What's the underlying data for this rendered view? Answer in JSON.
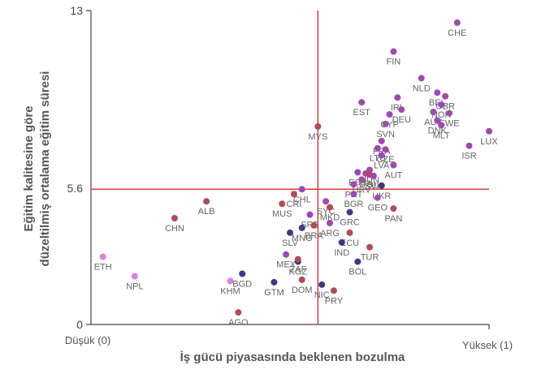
{
  "chart_data": {
    "type": "scatter",
    "xlabel": "İş gücü piyasasında beklenen bozulma",
    "ylabel": "Eğitim kalitesine göre düzeltilmiş ortalama eğitim süresi",
    "x_min_label": "Düşük (0)",
    "x_max_label": "Yüksek (1)",
    "xlim": [
      0,
      1
    ],
    "ylim": [
      0,
      13
    ],
    "yticks": [
      "0",
      "5.6",
      "13"
    ],
    "reference_lines": {
      "x": 0.57,
      "y": 5.6
    },
    "colors": {
      "axes": "#444444",
      "reference": "#dd3b3b",
      "text": "#666666"
    },
    "points": [
      {
        "label": "CHE",
        "x": 0.92,
        "y": 12.5,
        "color": "#a24aa8"
      },
      {
        "label": "FIN",
        "x": 0.76,
        "y": 11.3,
        "color": "#9c48b8"
      },
      {
        "label": "NLD",
        "x": 0.83,
        "y": 10.2,
        "color": "#a24aa8"
      },
      {
        "label": "BEL",
        "x": 0.87,
        "y": 9.6,
        "color": "#9c48b8"
      },
      {
        "label": "GBR",
        "x": 0.89,
        "y": 9.45,
        "color": "#a24aa8"
      },
      {
        "label": "NOR",
        "x": 0.88,
        "y": 9.1,
        "color": "#9c48b8"
      },
      {
        "label": "IRL",
        "x": 0.77,
        "y": 9.4,
        "color": "#9c48b8"
      },
      {
        "label": "DEU",
        "x": 0.78,
        "y": 8.9,
        "color": "#a24aa8"
      },
      {
        "label": "AUS",
        "x": 0.86,
        "y": 8.8,
        "color": "#9c48b8"
      },
      {
        "label": "SWE",
        "x": 0.9,
        "y": 8.75,
        "color": "#a24aa8"
      },
      {
        "label": "DNK",
        "x": 0.87,
        "y": 8.45,
        "color": "#9c48b8"
      },
      {
        "label": "MLT",
        "x": 0.88,
        "y": 8.25,
        "color": "#a24aa8"
      },
      {
        "label": "EST",
        "x": 0.68,
        "y": 9.2,
        "color": "#a24aa8"
      },
      {
        "label": "CYP",
        "x": 0.75,
        "y": 8.7,
        "color": "#9c48b8"
      },
      {
        "label": "SVN",
        "x": 0.74,
        "y": 8.3,
        "color": "#a24aa8"
      },
      {
        "label": "MYS",
        "x": 0.57,
        "y": 8.2,
        "color": "#b34a56"
      },
      {
        "label": "LUX",
        "x": 1.0,
        "y": 8.0,
        "color": "#a24aa8"
      },
      {
        "label": "ISR",
        "x": 0.95,
        "y": 7.4,
        "color": "#9c48b8"
      },
      {
        "label": "FRA",
        "x": 0.73,
        "y": 7.6,
        "color": "#a24aa8"
      },
      {
        "label": "LTU",
        "x": 0.72,
        "y": 7.3,
        "color": "#9c48b8"
      },
      {
        "label": "CZE",
        "x": 0.74,
        "y": 7.25,
        "color": "#a24aa8"
      },
      {
        "label": "LVA",
        "x": 0.73,
        "y": 7.0,
        "color": "#9c48b8"
      },
      {
        "label": "AUT",
        "x": 0.76,
        "y": 6.6,
        "color": "#a24aa8"
      },
      {
        "label": "HUN",
        "x": 0.7,
        "y": 6.4,
        "color": "#a24aa8"
      },
      {
        "label": "ESP",
        "x": 0.67,
        "y": 6.3,
        "color": "#9c48b8"
      },
      {
        "label": "ITA",
        "x": 0.69,
        "y": 6.25,
        "color": "#a24aa8"
      },
      {
        "label": "POL",
        "x": 0.7,
        "y": 6.2,
        "color": "#b34a56"
      },
      {
        "label": "SVK",
        "x": 0.71,
        "y": 6.15,
        "color": "#9c48b8"
      },
      {
        "label": "HRV",
        "x": 0.68,
        "y": 6.0,
        "color": "#a24aa8"
      },
      {
        "label": "PRT",
        "x": 0.66,
        "y": 5.8,
        "color": "#9c48b8"
      },
      {
        "label": "UKR",
        "x": 0.73,
        "y": 5.75,
        "color": "#3c3a86"
      },
      {
        "label": "CHL",
        "x": 0.53,
        "y": 5.6,
        "color": "#9c48b8"
      },
      {
        "label": "CRI",
        "x": 0.51,
        "y": 5.4,
        "color": "#b34a56"
      },
      {
        "label": "BGR",
        "x": 0.66,
        "y": 5.4,
        "color": "#9c48b8"
      },
      {
        "label": "GEO",
        "x": 0.72,
        "y": 5.25,
        "color": "#a24aa8"
      },
      {
        "label": "MUS",
        "x": 0.48,
        "y": 5.0,
        "color": "#b34a56"
      },
      {
        "label": "SYC",
        "x": 0.59,
        "y": 5.1,
        "color": "#9c48b8"
      },
      {
        "label": "PAN",
        "x": 0.76,
        "y": 4.8,
        "color": "#b34a56"
      },
      {
        "label": "MKD",
        "x": 0.6,
        "y": 4.85,
        "color": "#b34a56"
      },
      {
        "label": "SRB",
        "x": 0.55,
        "y": 4.55,
        "color": "#9c48b8"
      },
      {
        "label": "GRC",
        "x": 0.65,
        "y": 4.65,
        "color": "#3c3a86"
      },
      {
        "label": "ARG",
        "x": 0.6,
        "y": 4.2,
        "color": "#9c48b8"
      },
      {
        "label": "MNG",
        "x": 0.53,
        "y": 4.0,
        "color": "#3c3a86"
      },
      {
        "label": "BRA",
        "x": 0.56,
        "y": 4.1,
        "color": "#b34a56"
      },
      {
        "label": "ALB",
        "x": 0.29,
        "y": 5.1,
        "color": "#b34a56"
      },
      {
        "label": "CHN",
        "x": 0.21,
        "y": 4.4,
        "color": "#b34a56"
      },
      {
        "label": "SLV",
        "x": 0.5,
        "y": 3.8,
        "color": "#3c3a86"
      },
      {
        "label": "ECU",
        "x": 0.65,
        "y": 3.8,
        "color": "#b34a56"
      },
      {
        "label": "IND",
        "x": 0.63,
        "y": 3.4,
        "color": "#3c3a86"
      },
      {
        "label": "TUR",
        "x": 0.7,
        "y": 3.2,
        "color": "#b34a56"
      },
      {
        "label": "MEX",
        "x": 0.49,
        "y": 2.9,
        "color": "#9c48b8"
      },
      {
        "label": "KGZ",
        "x": 0.52,
        "y": 2.6,
        "color": "#3c3a86"
      },
      {
        "label": "ZAF",
        "x": 0.52,
        "y": 2.7,
        "color": "#b34a56"
      },
      {
        "label": "BOL",
        "x": 0.67,
        "y": 2.6,
        "color": "#3c3a86"
      },
      {
        "label": "ETH",
        "x": 0.03,
        "y": 2.8,
        "color": "#e07fdd"
      },
      {
        "label": "NPL",
        "x": 0.11,
        "y": 2.0,
        "color": "#e07fdd"
      },
      {
        "label": "BGD",
        "x": 0.38,
        "y": 2.1,
        "color": "#3c3a86"
      },
      {
        "label": "KHM",
        "x": 0.35,
        "y": 1.8,
        "color": "#e07fdd"
      },
      {
        "label": "GTM",
        "x": 0.46,
        "y": 1.75,
        "color": "#3c3a86"
      },
      {
        "label": "DOM",
        "x": 0.53,
        "y": 1.85,
        "color": "#b34a56"
      },
      {
        "label": "NIC",
        "x": 0.58,
        "y": 1.65,
        "color": "#3c3a86"
      },
      {
        "label": "PRY",
        "x": 0.61,
        "y": 1.4,
        "color": "#b34a56"
      },
      {
        "label": "AGO",
        "x": 0.37,
        "y": 0.5,
        "color": "#b34a56"
      }
    ]
  }
}
